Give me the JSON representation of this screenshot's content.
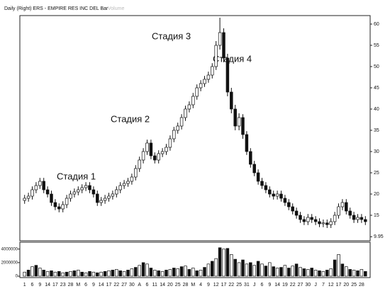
{
  "chart_data": {
    "type": "candlestick",
    "title": "Daily (Right) ERS - EMPIRE RES INC DEL Bar",
    "volume_label": "Volume",
    "annotations": [
      "Стадия 1",
      "Стадия 2",
      "Стадия 3",
      "Стадия 4"
    ],
    "categories": [
      "1",
      null,
      "6",
      null,
      "9",
      null,
      "14",
      null,
      "17",
      null,
      "23",
      null,
      "28",
      null,
      "M",
      null,
      "6",
      null,
      "9",
      null,
      "14",
      null,
      "17",
      null,
      "22",
      null,
      "27",
      null,
      "30",
      null,
      "A",
      null,
      "6",
      null,
      "11",
      null,
      "14",
      null,
      "20",
      null,
      "25",
      null,
      "28",
      null,
      "M",
      null,
      "4",
      null,
      "9",
      null,
      "12",
      null,
      "17",
      null,
      "22",
      null,
      "25",
      null,
      "31",
      null,
      "J",
      null,
      "6",
      null,
      "9",
      null,
      "14",
      null,
      "19",
      null,
      "22",
      null,
      "27",
      null,
      "30",
      null,
      "J",
      null,
      "7",
      null,
      "12",
      null,
      "17",
      null,
      "20",
      null,
      "25",
      null,
      "28",
      null
    ],
    "ohlc": [
      [
        18.5,
        19.8,
        17.7,
        19
      ],
      [
        19,
        20.3,
        18.2,
        19.5
      ],
      [
        19.5,
        21.8,
        18.7,
        21
      ],
      [
        21,
        22.8,
        20.2,
        22
      ],
      [
        22,
        23.8,
        21.2,
        23
      ],
      [
        23,
        23.8,
        20.2,
        21
      ],
      [
        21,
        21.8,
        19.2,
        20
      ],
      [
        20,
        20.8,
        17.2,
        18
      ],
      [
        18,
        18.8,
        16.2,
        17
      ],
      [
        17,
        17.8,
        15.7,
        16.5
      ],
      [
        16.5,
        18.3,
        15.7,
        17.5
      ],
      [
        17.5,
        19.8,
        16.7,
        19
      ],
      [
        19,
        20.8,
        18.2,
        20
      ],
      [
        20,
        21.3,
        19.2,
        20.5
      ],
      [
        20.5,
        21.8,
        19.7,
        21
      ],
      [
        21,
        22.3,
        20.2,
        21.5
      ],
      [
        21.5,
        22.8,
        20.7,
        22
      ],
      [
        22,
        22.8,
        20.2,
        21
      ],
      [
        21,
        21.8,
        19.2,
        20
      ],
      [
        20,
        20.8,
        17.2,
        18
      ],
      [
        18,
        19.3,
        17.2,
        18.5
      ],
      [
        18.5,
        19.8,
        17.7,
        19
      ],
      [
        19,
        20.3,
        18.2,
        19.5
      ],
      [
        19.5,
        20.8,
        18.7,
        20
      ],
      [
        20,
        21.8,
        19.2,
        21
      ],
      [
        21,
        22.8,
        20.2,
        22
      ],
      [
        22,
        23.3,
        21.2,
        22.5
      ],
      [
        22.5,
        23.8,
        21.7,
        23
      ],
      [
        23,
        24.8,
        22.2,
        24
      ],
      [
        24,
        26.8,
        23.2,
        26
      ],
      [
        26,
        28.8,
        25.2,
        28
      ],
      [
        28,
        30.8,
        27.2,
        30
      ],
      [
        30,
        32.8,
        29.2,
        32
      ],
      [
        32,
        32.8,
        28.2,
        29
      ],
      [
        29,
        29.8,
        27.2,
        28
      ],
      [
        28,
        30.3,
        27.2,
        29.5
      ],
      [
        29.5,
        30.8,
        28.7,
        30
      ],
      [
        30,
        31.8,
        29.2,
        31
      ],
      [
        31,
        33.8,
        30.2,
        33
      ],
      [
        33,
        35.8,
        32.2,
        35
      ],
      [
        35,
        36.8,
        34.2,
        36
      ],
      [
        36,
        38.8,
        35.2,
        38
      ],
      [
        38,
        40.8,
        37.2,
        40
      ],
      [
        40,
        41.8,
        39.2,
        41
      ],
      [
        41,
        43.8,
        40.2,
        43
      ],
      [
        43,
        45.8,
        42.2,
        45
      ],
      [
        45,
        46.8,
        44.2,
        46
      ],
      [
        46,
        47.8,
        45.2,
        47
      ],
      [
        47,
        48.8,
        46.2,
        48
      ],
      [
        48,
        50.8,
        47.2,
        50
      ],
      [
        50,
        56,
        49.2,
        55
      ],
      [
        55,
        61.5,
        54,
        58
      ],
      [
        58,
        59,
        51,
        52
      ],
      [
        52,
        53,
        43,
        44
      ],
      [
        44,
        45,
        39,
        40
      ],
      [
        40,
        41,
        35,
        36
      ],
      [
        36,
        39,
        35,
        38
      ],
      [
        38,
        38.8,
        33,
        34
      ],
      [
        34,
        34.8,
        29.2,
        30
      ],
      [
        30,
        30.8,
        26.2,
        27
      ],
      [
        27,
        27.8,
        24.2,
        25
      ],
      [
        25,
        25.8,
        22.2,
        23
      ],
      [
        23,
        23.8,
        21.2,
        22
      ],
      [
        22,
        22.8,
        20.2,
        21
      ],
      [
        21,
        21.8,
        19.2,
        20
      ],
      [
        20,
        20.8,
        18.7,
        19.5
      ],
      [
        19.5,
        20.8,
        18.7,
        20
      ],
      [
        20,
        20.8,
        18.2,
        19
      ],
      [
        19,
        19.8,
        17.2,
        18
      ],
      [
        18,
        18.8,
        16.2,
        17
      ],
      [
        17,
        17.8,
        15.2,
        16
      ],
      [
        16,
        16.8,
        14.2,
        15
      ],
      [
        15,
        15.8,
        13.2,
        14
      ],
      [
        14,
        14.8,
        12.7,
        13.5
      ],
      [
        13.5,
        15.3,
        12.7,
        14.5
      ],
      [
        14.5,
        15.3,
        13.2,
        14
      ],
      [
        14,
        14.8,
        12.7,
        13.5
      ],
      [
        13.5,
        14.3,
        12.2,
        13
      ],
      [
        13,
        14,
        12.2,
        13.2
      ],
      [
        13.2,
        14,
        12,
        12.8
      ],
      [
        12.8,
        14.3,
        12,
        13.5
      ],
      [
        13.5,
        15.8,
        12.7,
        15
      ],
      [
        15,
        17.8,
        14.2,
        17
      ],
      [
        17,
        18.8,
        16.2,
        18
      ],
      [
        18,
        18.8,
        15.2,
        16
      ],
      [
        16,
        16.8,
        14.2,
        15
      ],
      [
        15,
        15.8,
        13.2,
        14
      ],
      [
        14,
        15.3,
        13.2,
        14.5
      ],
      [
        14.5,
        15.3,
        13.2,
        14
      ],
      [
        14,
        14.8,
        12.7,
        13.5
      ]
    ],
    "volume": [
      600000,
      900000,
      1400000,
      1600000,
      1200000,
      900000,
      700000,
      800000,
      600000,
      700000,
      500000,
      600000,
      700000,
      800000,
      900000,
      600000,
      500000,
      700000,
      600000,
      500000,
      600000,
      700000,
      800000,
      900000,
      1000000,
      800000,
      700000,
      900000,
      1100000,
      1300000,
      1600000,
      2000000,
      1800000,
      1200000,
      900000,
      800000,
      700000,
      900000,
      1000000,
      1200000,
      1100000,
      1400000,
      1500000,
      1000000,
      1200000,
      800000,
      900000,
      1300000,
      1800000,
      2200000,
      2600000,
      4200000,
      4000000,
      4100000,
      3200000,
      2500000,
      2000000,
      2400000,
      1800000,
      2000000,
      1600000,
      2200000,
      1800000,
      1500000,
      2000000,
      1400000,
      1200000,
      1300000,
      1600000,
      1200000,
      1500000,
      1800000,
      1300000,
      1100000,
      1000000,
      1200000,
      900000,
      800000,
      700000,
      900000,
      1100000,
      2400000,
      3200000,
      1800000,
      1400000,
      1000000,
      900000,
      800000,
      1000000,
      700000
    ],
    "ylim": [
      9,
      62
    ],
    "yticks": [
      60,
      55,
      50,
      45,
      40,
      35,
      30,
      25,
      20,
      15,
      9.95
    ],
    "vol_ylim": [
      0,
      4600000
    ],
    "vol_yticks": [
      0,
      2000000,
      4000000
    ],
    "up_color": "#ffffff",
    "down_color": "#111111"
  }
}
